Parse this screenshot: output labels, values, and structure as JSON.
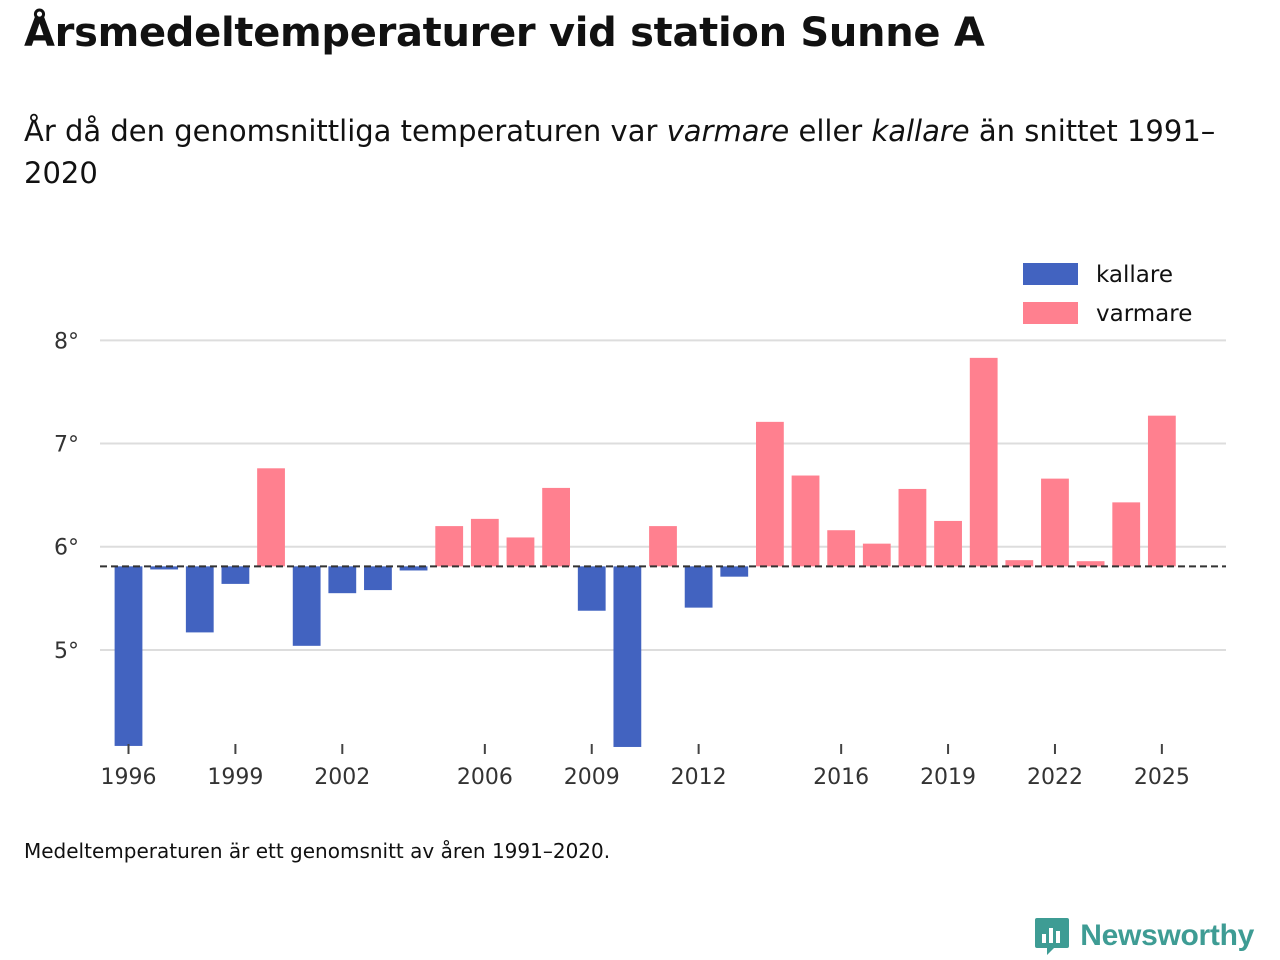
{
  "header": {
    "title": "Årsmedeltemperaturer vid station Sunne A",
    "subtitle_part1": "År då den genomsnittliga temperaturen var ",
    "subtitle_em1": "varmare",
    "subtitle_part2": " eller ",
    "subtitle_em2": "kallare",
    "subtitle_part3": " än snittet 1991–2020"
  },
  "footer": {
    "note": "Medeltemperaturen är ett genomsnitt av åren 1991–2020.",
    "brand": "Newsworthy"
  },
  "colors": {
    "colder": "#4263c0",
    "warmer": "#ff808f",
    "baseline": "#333333",
    "grid": "#dddddd",
    "brand": "#3e9c94"
  },
  "chart_data": {
    "type": "bar",
    "title": "Årsmedeltemperaturer vid station Sunne A",
    "baseline": 5.81,
    "baseline_label": "snittet 1991–2020",
    "ylim": [
      4.05,
      8.1
    ],
    "yticks": [
      5,
      6,
      7,
      8
    ],
    "ytick_suffix": "°",
    "xticks": [
      1996,
      1999,
      2002,
      2006,
      2009,
      2012,
      2016,
      2019,
      2022,
      2025
    ],
    "xlim": [
      1995.2,
      2026.8
    ],
    "legend": [
      {
        "key": "colder",
        "label": "kallare"
      },
      {
        "key": "warmer",
        "label": "varmare"
      }
    ],
    "legend_position": "top-right",
    "years": [
      1996,
      1997,
      1998,
      1999,
      2000,
      2001,
      2002,
      2003,
      2004,
      2005,
      2006,
      2007,
      2008,
      2009,
      2010,
      2011,
      2012,
      2013,
      2014,
      2015,
      2016,
      2017,
      2018,
      2019,
      2020,
      2021,
      2022,
      2023,
      2024,
      2025
    ],
    "values": [
      4.07,
      5.78,
      5.17,
      5.64,
      6.76,
      5.04,
      5.55,
      5.58,
      5.77,
      6.2,
      6.27,
      6.09,
      6.57,
      5.38,
      4.06,
      6.2,
      5.41,
      5.71,
      7.21,
      6.69,
      6.16,
      6.03,
      6.56,
      6.25,
      7.83,
      5.87,
      6.66,
      5.86,
      6.43,
      7.27
    ]
  }
}
